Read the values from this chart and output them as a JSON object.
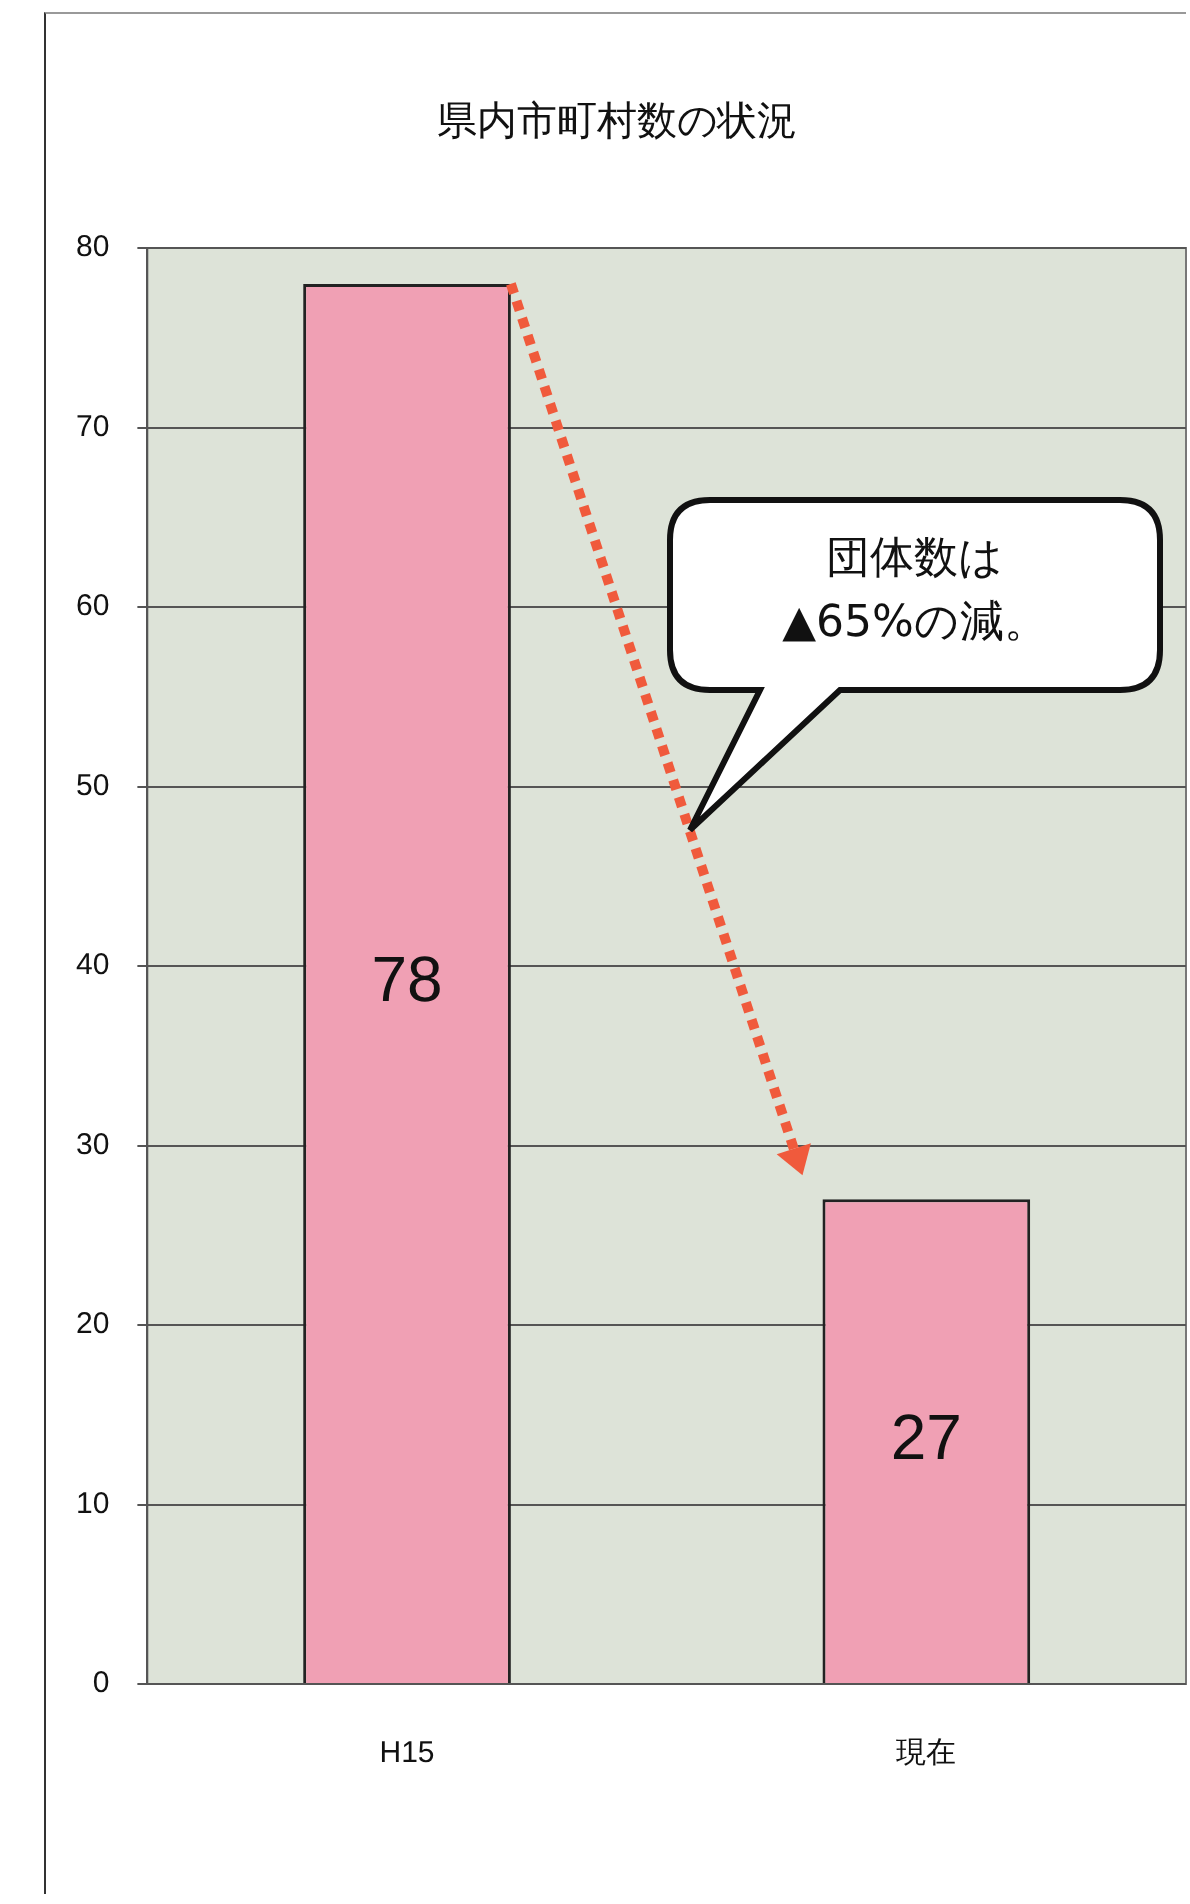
{
  "chart_data": {
    "type": "bar",
    "title": "県内市町村数の状況",
    "categories": [
      "H15",
      "現在"
    ],
    "values": [
      78,
      27
    ],
    "color": "#f0a0b4",
    "ylim": [
      0,
      80
    ],
    "yticks": [
      0,
      10,
      20,
      30,
      40,
      50,
      60,
      70,
      80
    ],
    "grid": "y",
    "data_labels": true,
    "annotations": [
      "団体数は\n▲65%の減。"
    ]
  }
}
